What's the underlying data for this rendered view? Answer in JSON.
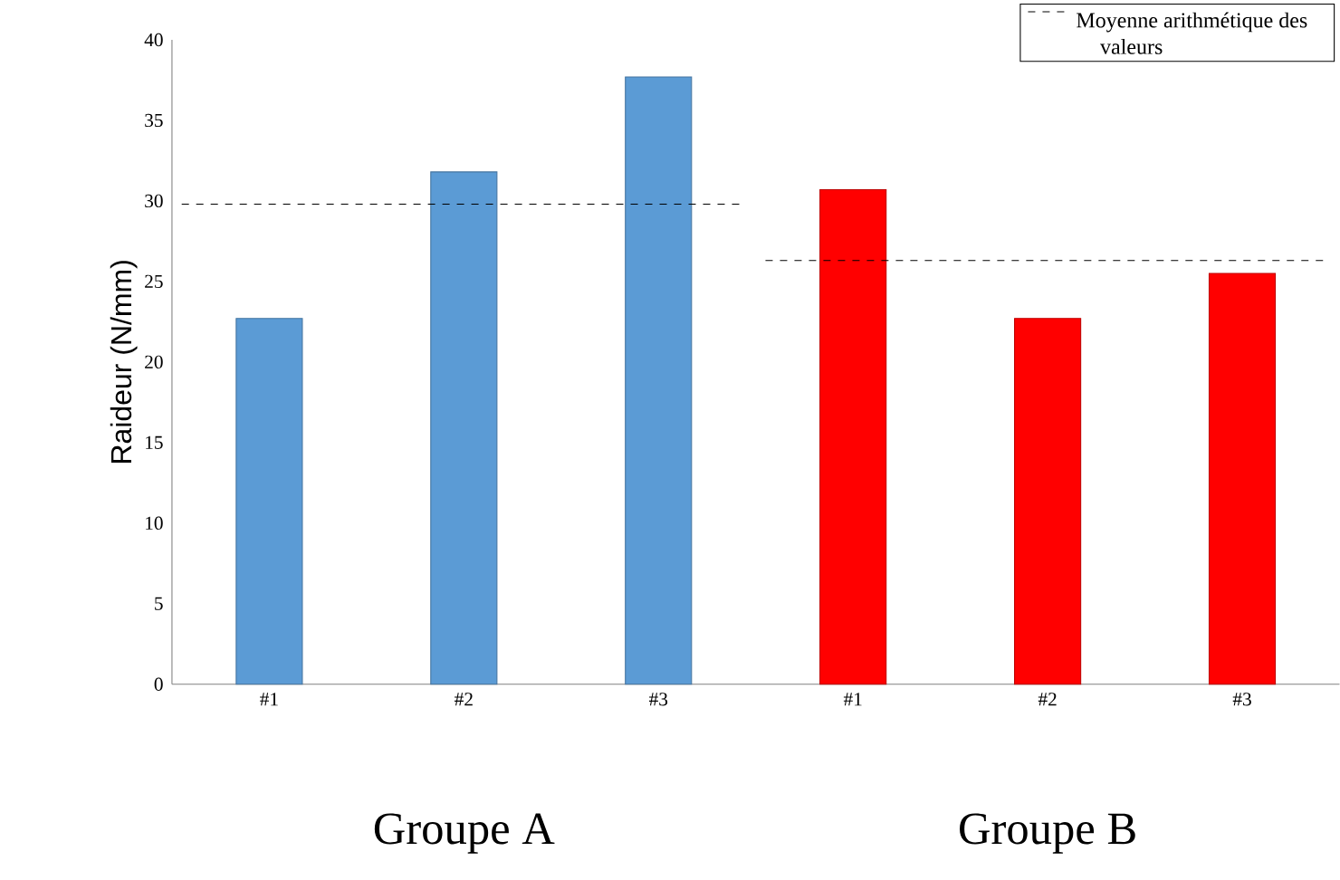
{
  "chart_data": {
    "type": "bar",
    "ylabel": "Raideur (N/mm)",
    "categories": [
      "#1",
      "#2",
      "#3",
      "#1",
      "#2",
      "#3"
    ],
    "values": [
      22.7,
      31.8,
      37.7,
      30.7,
      22.7,
      25.5
    ],
    "colors": [
      "#5b9bd5",
      "#5b9bd5",
      "#5b9bd5",
      "#ff0000",
      "#ff0000",
      "#ff0000"
    ],
    "ylim": [
      0,
      40
    ],
    "yticks": [
      0,
      5,
      10,
      15,
      20,
      25,
      30,
      35,
      40
    ],
    "grid": false,
    "legend": "top right",
    "ref_lines": [
      {
        "axis": "y",
        "value": 29.8,
        "label": "Moyenne arithmétique des valeurs",
        "line_style": "dashed",
        "color": "#000000"
      },
      {
        "axis": "y",
        "value": 26.3,
        "line_style": "dashed",
        "color": "#000000"
      }
    ],
    "annotations": [
      "Groupe A",
      "Groupe B"
    ]
  }
}
